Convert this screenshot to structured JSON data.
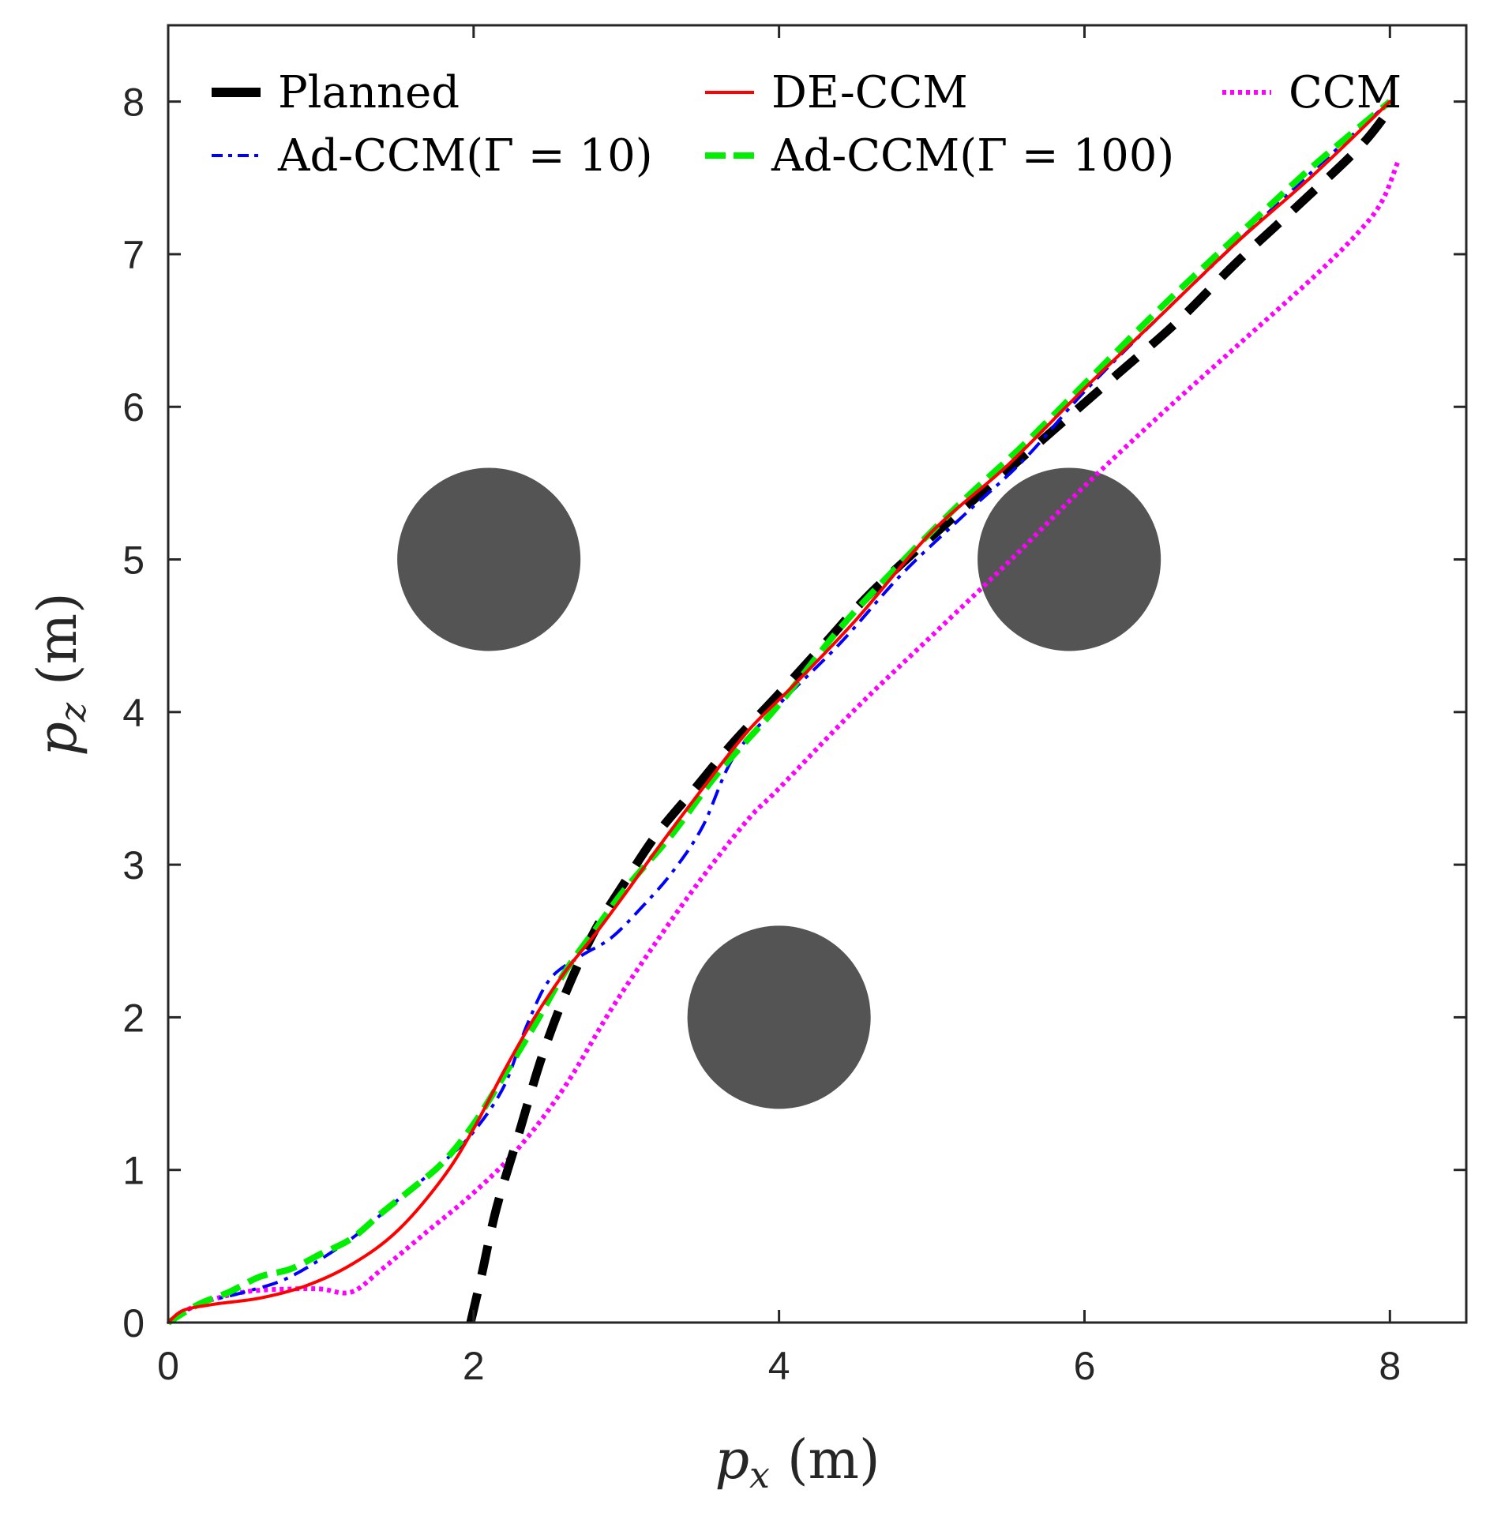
{
  "chart_data": {
    "type": "line",
    "title": "",
    "xlabel": {
      "var": "p",
      "sub": "x",
      "unit": "(m)"
    },
    "ylabel": {
      "var": "p",
      "sub": "z",
      "unit": "(m)"
    },
    "xlim": [
      0,
      8.5
    ],
    "ylim": [
      0,
      8.5
    ],
    "xticks": [
      "0",
      "2",
      "4",
      "6",
      "8"
    ],
    "yticks": [
      "0",
      "1",
      "2",
      "3",
      "4",
      "5",
      "6",
      "7",
      "8"
    ],
    "grid": false,
    "legend_position": "top",
    "obstacles": [
      {
        "name": "obstacle-1",
        "x": 2.1,
        "y": 5.0,
        "r": 0.6,
        "color": "#545454"
      },
      {
        "name": "obstacle-2",
        "x": 5.9,
        "y": 5.0,
        "r": 0.6,
        "color": "#545454"
      },
      {
        "name": "obstacle-3",
        "x": 4.0,
        "y": 2.0,
        "r": 0.6,
        "color": "#545454"
      }
    ],
    "series": [
      {
        "name": "Planned",
        "color": "#000000",
        "style": "dashed-thick",
        "x": [
          1.98,
          2.05,
          2.15,
          2.3,
          2.45,
          2.62,
          2.8,
          3.0,
          3.2,
          3.45,
          3.7,
          4.0,
          4.3,
          4.6,
          5.0,
          5.4,
          5.8,
          6.2,
          6.6,
          7.0,
          7.4,
          7.8,
          8.0
        ],
        "y": [
          0.0,
          0.3,
          0.75,
          1.25,
          1.75,
          2.2,
          2.58,
          2.9,
          3.2,
          3.5,
          3.8,
          4.12,
          4.45,
          4.78,
          5.15,
          5.5,
          5.85,
          6.2,
          6.55,
          6.95,
          7.32,
          7.7,
          7.95
        ]
      },
      {
        "name": "DE-CCM",
        "color": "#ff0000",
        "style": "solid",
        "x": [
          0.0,
          0.1,
          0.3,
          0.6,
          0.9,
          1.2,
          1.5,
          1.8,
          2.0,
          2.2,
          2.4,
          2.6,
          2.8,
          3.0,
          3.2,
          3.5,
          3.8,
          4.1,
          4.5,
          5.0,
          5.5,
          6.0,
          6.5,
          7.0,
          7.5,
          8.0
        ],
        "y": [
          0.0,
          0.08,
          0.12,
          0.16,
          0.24,
          0.38,
          0.6,
          0.95,
          1.27,
          1.65,
          2.0,
          2.3,
          2.55,
          2.82,
          3.1,
          3.5,
          3.88,
          4.18,
          4.6,
          5.18,
          5.62,
          6.12,
          6.6,
          7.08,
          7.52,
          8.0
        ]
      },
      {
        "name": "CCM",
        "color": "#ff00ff",
        "style": "dotted",
        "x": [
          0.0,
          0.2,
          0.5,
          0.8,
          1.0,
          1.2,
          1.4,
          1.7,
          2.0,
          2.3,
          2.6,
          2.9,
          3.2,
          3.5,
          3.8,
          4.0,
          4.5,
          5.0,
          5.5,
          6.0,
          6.5,
          7.0,
          7.5,
          7.8,
          7.95,
          8.05
        ],
        "y": [
          0.0,
          0.12,
          0.2,
          0.22,
          0.22,
          0.2,
          0.35,
          0.6,
          0.85,
          1.15,
          1.55,
          2.05,
          2.5,
          2.92,
          3.3,
          3.5,
          4.02,
          4.5,
          4.98,
          5.48,
          5.95,
          6.4,
          6.85,
          7.15,
          7.35,
          7.6
        ]
      },
      {
        "name": "Ad-CCM(Γ = 10)",
        "color": "#0000ff",
        "style": "dashdot",
        "x": [
          0.0,
          0.2,
          0.5,
          0.8,
          1.2,
          1.5,
          1.8,
          2.0,
          2.2,
          2.35,
          2.5,
          2.7,
          2.9,
          3.1,
          3.3,
          3.5,
          3.7,
          4.0,
          4.4,
          4.8,
          5.2,
          5.6,
          6.0,
          6.5,
          7.0,
          7.5,
          8.0
        ],
        "y": [
          0.0,
          0.12,
          0.2,
          0.3,
          0.55,
          0.8,
          1.05,
          1.25,
          1.55,
          1.95,
          2.25,
          2.4,
          2.52,
          2.72,
          2.95,
          3.25,
          3.7,
          4.05,
          4.45,
          4.9,
          5.28,
          5.65,
          6.1,
          6.6,
          7.08,
          7.55,
          8.0
        ]
      },
      {
        "name": "Ad-CCM(Γ = 100)",
        "color": "#00ee00",
        "style": "dashed-green",
        "x": [
          0.0,
          0.2,
          0.4,
          0.6,
          0.8,
          1.0,
          1.2,
          1.4,
          1.6,
          1.8,
          2.0,
          2.2,
          2.4,
          2.6,
          2.8,
          3.0,
          3.3,
          3.6,
          4.0,
          4.4,
          4.8,
          5.2,
          5.6,
          6.0,
          6.5,
          7.0,
          7.5,
          8.0
        ],
        "y": [
          0.0,
          0.12,
          0.2,
          0.3,
          0.35,
          0.45,
          0.55,
          0.72,
          0.88,
          1.05,
          1.3,
          1.62,
          1.95,
          2.3,
          2.58,
          2.85,
          3.2,
          3.6,
          4.05,
          4.55,
          4.98,
          5.38,
          5.75,
          6.15,
          6.65,
          7.12,
          7.58,
          8.0
        ]
      }
    ]
  }
}
